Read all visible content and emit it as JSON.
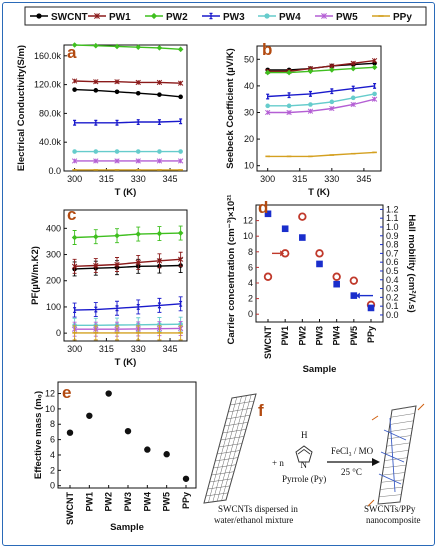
{
  "legend": {
    "entries": [
      {
        "label": "SWCNT",
        "color": "#000000",
        "marker": "circle"
      },
      {
        "label": "PW1",
        "color": "#8b1a1a",
        "marker": "star"
      },
      {
        "label": "PW2",
        "color": "#3fbf1f",
        "marker": "diamond"
      },
      {
        "label": "PW3",
        "color": "#1a1acc",
        "marker": "bar"
      },
      {
        "label": "PW4",
        "color": "#66cccc",
        "marker": "circle"
      },
      {
        "label": "PW5",
        "color": "#b45fd4",
        "marker": "star"
      },
      {
        "label": "PPy",
        "color": "#d4a020",
        "marker": "dash"
      }
    ]
  },
  "panel_labels": {
    "a": "a",
    "b": "b",
    "c": "c",
    "d": "d",
    "e": "e",
    "f": "f"
  },
  "chart_data": [
    {
      "panel": "a",
      "type": "line",
      "xlabel": "T (K)",
      "ylabel": "Electrical Conductivity(S/m)",
      "x": [
        300,
        310,
        320,
        330,
        340,
        350
      ],
      "x_ticks": [
        "300",
        "315",
        "330",
        "345"
      ],
      "y_ticks": [
        "0.0",
        "40.0k",
        "80.0k",
        "120.0k",
        "160.0k"
      ],
      "ylim": [
        0,
        175000
      ],
      "series": [
        {
          "name": "SWCNT",
          "values": [
            113000,
            112000,
            110000,
            108000,
            106000,
            103000
          ]
        },
        {
          "name": "PW1",
          "values": [
            125000,
            124000,
            124000,
            123000,
            123000,
            122000
          ]
        },
        {
          "name": "PW2",
          "values": [
            175000,
            174000,
            173000,
            172000,
            171000,
            169000
          ]
        },
        {
          "name": "PW3",
          "values": [
            67000,
            67000,
            67000,
            68000,
            68000,
            69000
          ]
        },
        {
          "name": "PW4",
          "values": [
            27000,
            27000,
            27000,
            27000,
            27000,
            27000
          ]
        },
        {
          "name": "PW5",
          "values": [
            14000,
            14000,
            14000,
            14000,
            14000,
            14000
          ]
        },
        {
          "name": "PPy",
          "values": [
            1500,
            1500,
            1500,
            1500,
            1500,
            1500
          ]
        }
      ]
    },
    {
      "panel": "b",
      "type": "line",
      "xlabel": "T (K)",
      "ylabel": "Seebeck Coefficient (µV/K)",
      "x": [
        300,
        310,
        320,
        330,
        340,
        350
      ],
      "x_ticks": [
        "300",
        "315",
        "330",
        "345"
      ],
      "y_ticks": [
        "10",
        "20",
        "30",
        "40",
        "50"
      ],
      "ylim": [
        8,
        55
      ],
      "series": [
        {
          "name": "SWCNT",
          "values": [
            46,
            46,
            46.5,
            47.5,
            48,
            48.5
          ]
        },
        {
          "name": "PW1",
          "values": [
            45.5,
            45.5,
            46.5,
            47.5,
            48.5,
            49.5
          ]
        },
        {
          "name": "PW2",
          "values": [
            45,
            45,
            45.5,
            46,
            46.5,
            47
          ]
        },
        {
          "name": "PW3",
          "values": [
            36,
            36.5,
            37,
            38,
            39,
            40
          ]
        },
        {
          "name": "PW4",
          "values": [
            32.5,
            32.5,
            33,
            34,
            35.5,
            37
          ]
        },
        {
          "name": "PW5",
          "values": [
            30,
            30,
            30.5,
            31.5,
            33,
            35
          ]
        },
        {
          "name": "PPy",
          "values": [
            13.5,
            13.5,
            13.5,
            14,
            14.5,
            15
          ]
        }
      ]
    },
    {
      "panel": "c",
      "type": "line",
      "xlabel": "T (K)",
      "ylabel": "PF(µW/m.K2)",
      "x": [
        300,
        310,
        320,
        330,
        340,
        350
      ],
      "x_ticks": [
        "300",
        "315",
        "330",
        "345"
      ],
      "y_ticks": [
        "0",
        "100",
        "200",
        "300",
        "400"
      ],
      "ylim": [
        -30,
        470
      ],
      "series": [
        {
          "name": "SWCNT",
          "values": [
            245,
            248,
            250,
            255,
            256,
            258
          ]
        },
        {
          "name": "PW1",
          "values": [
            255,
            258,
            262,
            270,
            276,
            282
          ]
        },
        {
          "name": "PW2",
          "values": [
            365,
            368,
            372,
            378,
            380,
            382
          ]
        },
        {
          "name": "PW3",
          "values": [
            88,
            90,
            95,
            100,
            106,
            112
          ]
        },
        {
          "name": "PW4",
          "values": [
            30,
            30,
            31,
            32,
            33,
            34
          ]
        },
        {
          "name": "PW5",
          "values": [
            15,
            15,
            15,
            16,
            17,
            18
          ]
        },
        {
          "name": "PPy",
          "values": [
            1,
            1,
            1,
            1,
            1,
            1
          ]
        }
      ]
    },
    {
      "panel": "d",
      "type": "scatter",
      "xlabel": "Sample",
      "ylabel": "Carrier concentration (cm⁻³)×10²¹",
      "y2label": "Hall mobility (cm²/V.s)",
      "categories": [
        "SWCNT",
        "PW1",
        "PW2",
        "PW3",
        "PW4",
        "PW5",
        "PPy"
      ],
      "y_ticks": [
        "0",
        "2",
        "4",
        "6",
        "8",
        "10",
        "12"
      ],
      "ylim": [
        -1,
        14
      ],
      "y2_ticks": [
        "0.0",
        "0.1",
        "0.2",
        "0.3",
        "0.4",
        "0.5",
        "0.6",
        "0.7",
        "0.8",
        "0.9",
        "1.0",
        "1.1",
        "1.2"
      ],
      "y2lim": [
        -0.08,
        1.25
      ],
      "series": [
        {
          "name": "Carrier concentration",
          "values": [
            4.8,
            7.8,
            12.5,
            7.8,
            4.8,
            4.3,
            1.2
          ]
        },
        {
          "name": "Hall mobility",
          "values": [
            1.15,
            0.98,
            0.88,
            0.58,
            0.35,
            0.22,
            0.08
          ]
        }
      ]
    },
    {
      "panel": "e",
      "type": "scatter",
      "xlabel": "Sample",
      "ylabel": "Effective mass (m₀)",
      "categories": [
        "SWCNT",
        "PW1",
        "PW2",
        "PW3",
        "PW4",
        "PW5",
        "PPy"
      ],
      "y_ticks": [
        "0",
        "2",
        "4",
        "6",
        "8",
        "10",
        "12"
      ],
      "ylim": [
        -0.3,
        13.5
      ],
      "values": [
        6.9,
        9.1,
        12,
        7.1,
        4.7,
        4.1,
        0.9
      ]
    }
  ],
  "scheme": {
    "plus": "+ n",
    "reagent_top": "FeCl₃ / MO",
    "reagent_bottom": "25 °C",
    "monomer_label": "Pyrrole (Py)",
    "nh": "N",
    "h": "H",
    "left_caption": [
      "SWCNTs dispersed in",
      "water/ethanol mixture"
    ],
    "right_caption": [
      "SWCNTs/PPy",
      "nanocomposite"
    ]
  }
}
